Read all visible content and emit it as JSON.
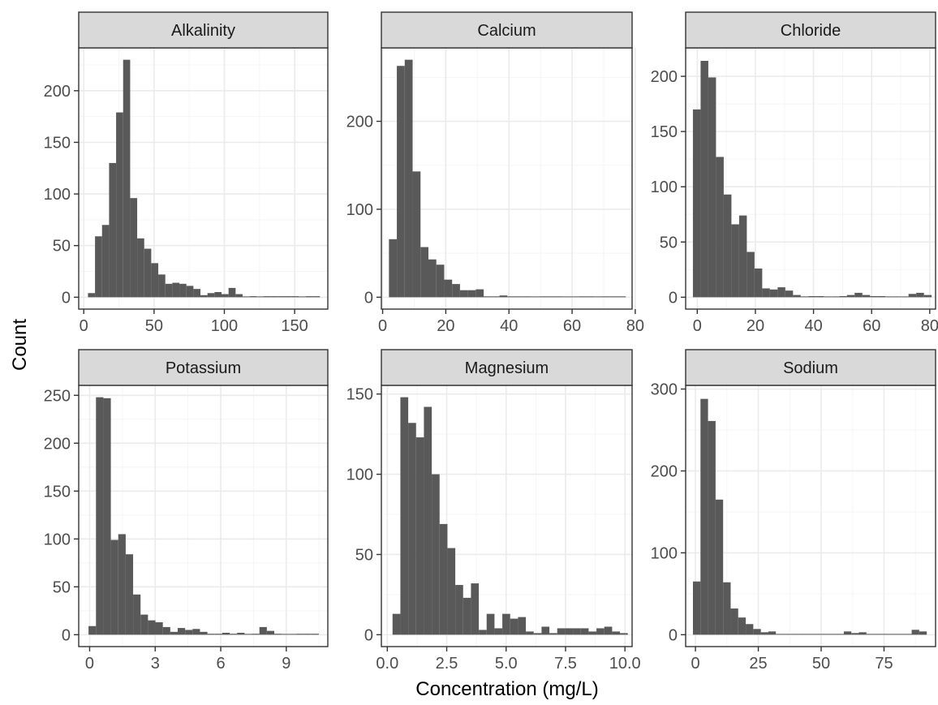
{
  "figure": {
    "xlabel": "Concentration (mg/L)",
    "ylabel": "Count"
  },
  "colors": {
    "bar": "#595959",
    "strip_fill": "#d9d9d9",
    "panel_border": "#333333",
    "grid_major": "#ebebeb",
    "grid_minor": "#f5f5f5",
    "axis_text": "#4d4d4d",
    "title_text": "#1a1a1a"
  },
  "chart_data": [
    {
      "type": "bar",
      "title": "Alkalinity",
      "xlim": [
        -3.6,
        173.6
      ],
      "ylim": [
        -11.5,
        241.5
      ],
      "xticks": [
        0,
        50,
        100,
        150
      ],
      "xtick_labels": [
        "0",
        "50",
        "100",
        "150"
      ],
      "yticks": [
        0,
        50,
        100,
        150,
        200
      ],
      "ytick_labels": [
        "0",
        "50",
        "100",
        "150",
        "200"
      ],
      "bin_width": 5,
      "bin_starts": [
        3,
        8,
        13,
        18,
        23,
        28,
        33,
        38,
        43,
        48,
        53,
        58,
        63,
        68,
        73,
        78,
        83,
        88,
        93,
        98,
        103,
        108,
        113,
        118,
        123,
        128,
        133,
        138,
        143,
        148,
        153,
        158,
        163
      ],
      "values": [
        4,
        59,
        70,
        130,
        179,
        230,
        96,
        57,
        47,
        33,
        22,
        13,
        14,
        13,
        11,
        8,
        2,
        4,
        5,
        3,
        9,
        3,
        0,
        1,
        0,
        1,
        1,
        1,
        1,
        1,
        0,
        1,
        1
      ]
    },
    {
      "type": "bar",
      "title": "Calcium",
      "xlim": [
        -0.4,
        79.0
      ],
      "ylim": [
        -13.5,
        283.5
      ],
      "xticks": [
        0,
        20,
        40,
        60,
        80
      ],
      "xtick_labels": [
        "0",
        "20",
        "40",
        "60",
        "80"
      ],
      "yticks": [
        0,
        100,
        200
      ],
      "ytick_labels": [
        "0",
        "100",
        "200"
      ],
      "bin_width": 2.5,
      "bin_starts": [
        2,
        4.5,
        7,
        9.5,
        12,
        14.5,
        17,
        19.5,
        22,
        24.5,
        27,
        29.5,
        32,
        34.5,
        37,
        39.5,
        42,
        44.5,
        47,
        49.5,
        52,
        54.5,
        57,
        59.5,
        62,
        64.5,
        67,
        69.5,
        72,
        74.5
      ],
      "values": [
        66,
        263,
        270,
        143,
        57,
        43,
        37,
        20,
        15,
        8,
        8,
        9,
        1,
        1,
        2,
        1,
        1,
        1,
        0,
        1,
        1,
        1,
        0,
        0,
        1,
        1,
        0,
        1,
        1,
        1
      ]
    },
    {
      "type": "bar",
      "title": "Chloride",
      "xlim": [
        -4.0,
        82.0
      ],
      "ylim": [
        -10.75,
        225.75
      ],
      "xticks": [
        0,
        20,
        40,
        60,
        80
      ],
      "xtick_labels": [
        "0",
        "20",
        "40",
        "60",
        "80"
      ],
      "yticks": [
        0,
        50,
        100,
        150,
        200
      ],
      "ytick_labels": [
        "0",
        "50",
        "100",
        "150",
        "200"
      ],
      "bin_width": 2.65,
      "bin_starts": [
        -1.5,
        1.15,
        3.8,
        6.45,
        9.1,
        11.75,
        14.4,
        17.05,
        19.7,
        22.35,
        25.0,
        27.65,
        30.3,
        32.95,
        35.6,
        38.25,
        40.9,
        43.55,
        46.2,
        48.85,
        51.5,
        54.15,
        56.8,
        59.45,
        62.1,
        64.75,
        67.4,
        70.05,
        72.7,
        75.35,
        78.0
      ],
      "values": [
        170,
        214,
        199,
        127,
        93,
        66,
        74,
        41,
        26,
        8,
        7,
        9,
        6,
        2,
        0,
        1,
        1,
        0,
        0,
        1,
        2,
        4,
        2,
        1,
        1,
        0,
        0,
        0,
        3,
        4,
        2
      ]
    },
    {
      "type": "bar",
      "title": "Potassium",
      "xlim": [
        -0.5,
        10.9
      ],
      "ylim": [
        -12.4,
        260.4
      ],
      "xticks": [
        0,
        3,
        6,
        9
      ],
      "xtick_labels": [
        "0",
        "3",
        "6",
        "9"
      ],
      "yticks": [
        0,
        50,
        100,
        150,
        200,
        250
      ],
      "ytick_labels": [
        "0",
        "50",
        "100",
        "150",
        "200",
        "250"
      ],
      "bin_width": 0.34,
      "bin_starts": [
        -0.05,
        0.29,
        0.63,
        0.97,
        1.31,
        1.65,
        1.99,
        2.33,
        2.67,
        3.01,
        3.35,
        3.69,
        4.03,
        4.37,
        4.71,
        5.05,
        5.39,
        5.73,
        6.07,
        6.41,
        6.75,
        7.09,
        7.43,
        7.77,
        8.11,
        8.45,
        8.79,
        9.13,
        9.47,
        9.81,
        10.15
      ],
      "values": [
        9,
        248,
        247,
        99,
        105,
        84,
        42,
        21,
        15,
        13,
        8,
        3,
        7,
        5,
        6,
        3,
        1,
        1,
        2,
        1,
        2,
        0,
        1,
        8,
        4,
        1,
        0,
        0,
        1,
        1,
        1
      ]
    },
    {
      "type": "bar",
      "title": "Magnesium",
      "xlim": [
        -0.25,
        10.3
      ],
      "ylim": [
        -7.4,
        155.4
      ],
      "xticks": [
        0,
        2.5,
        5,
        7.5,
        10
      ],
      "xtick_labels": [
        "0.0",
        "2.5",
        "5.0",
        "7.5",
        "10.0"
      ],
      "yticks": [
        0,
        50,
        100,
        150
      ],
      "ytick_labels": [
        "0",
        "50",
        "100",
        "150"
      ],
      "bin_width": 0.33,
      "bin_starts": [
        0.22,
        0.55,
        0.88,
        1.21,
        1.54,
        1.87,
        2.2,
        2.53,
        2.86,
        3.19,
        3.52,
        3.85,
        4.18,
        4.51,
        4.84,
        5.17,
        5.5,
        5.83,
        6.16,
        6.49,
        6.82,
        7.15,
        7.48,
        7.81,
        8.14,
        8.47,
        8.8,
        9.13,
        9.46,
        9.79
      ],
      "values": [
        13,
        148,
        132,
        123,
        142,
        100,
        69,
        54,
        31,
        23,
        32,
        3,
        13,
        4,
        13,
        10,
        11,
        2,
        1,
        5,
        1,
        4,
        4,
        4,
        4,
        2,
        4,
        5,
        2,
        1
      ]
    },
    {
      "type": "bar",
      "title": "Sodium",
      "xlim": [
        -3.9,
        95.5
      ],
      "ylim": [
        -14.5,
        304.5
      ],
      "xticks": [
        0,
        25,
        50,
        75
      ],
      "xtick_labels": [
        "0",
        "25",
        "50",
        "75"
      ],
      "yticks": [
        0,
        100,
        200,
        300
      ],
      "ytick_labels": [
        "0",
        "100",
        "200",
        "300"
      ],
      "bin_width": 3.0,
      "bin_starts": [
        -1.0,
        2.0,
        5.0,
        8.0,
        11.0,
        14.0,
        17.0,
        20.0,
        23.0,
        26.0,
        29.0,
        32.0,
        35.0,
        38.0,
        41.0,
        44.0,
        47.0,
        50.0,
        53.0,
        56.0,
        59.0,
        62.0,
        65.0,
        68.0,
        71.0,
        74.0,
        77.0,
        80.0,
        83.0,
        86.0,
        89.0
      ],
      "values": [
        65,
        288,
        261,
        165,
        64,
        32,
        21,
        13,
        7,
        3,
        4,
        1,
        0,
        0,
        1,
        0,
        1,
        1,
        0,
        1,
        4,
        2,
        3,
        1,
        0,
        0,
        0,
        0,
        1,
        6,
        4
      ]
    }
  ]
}
